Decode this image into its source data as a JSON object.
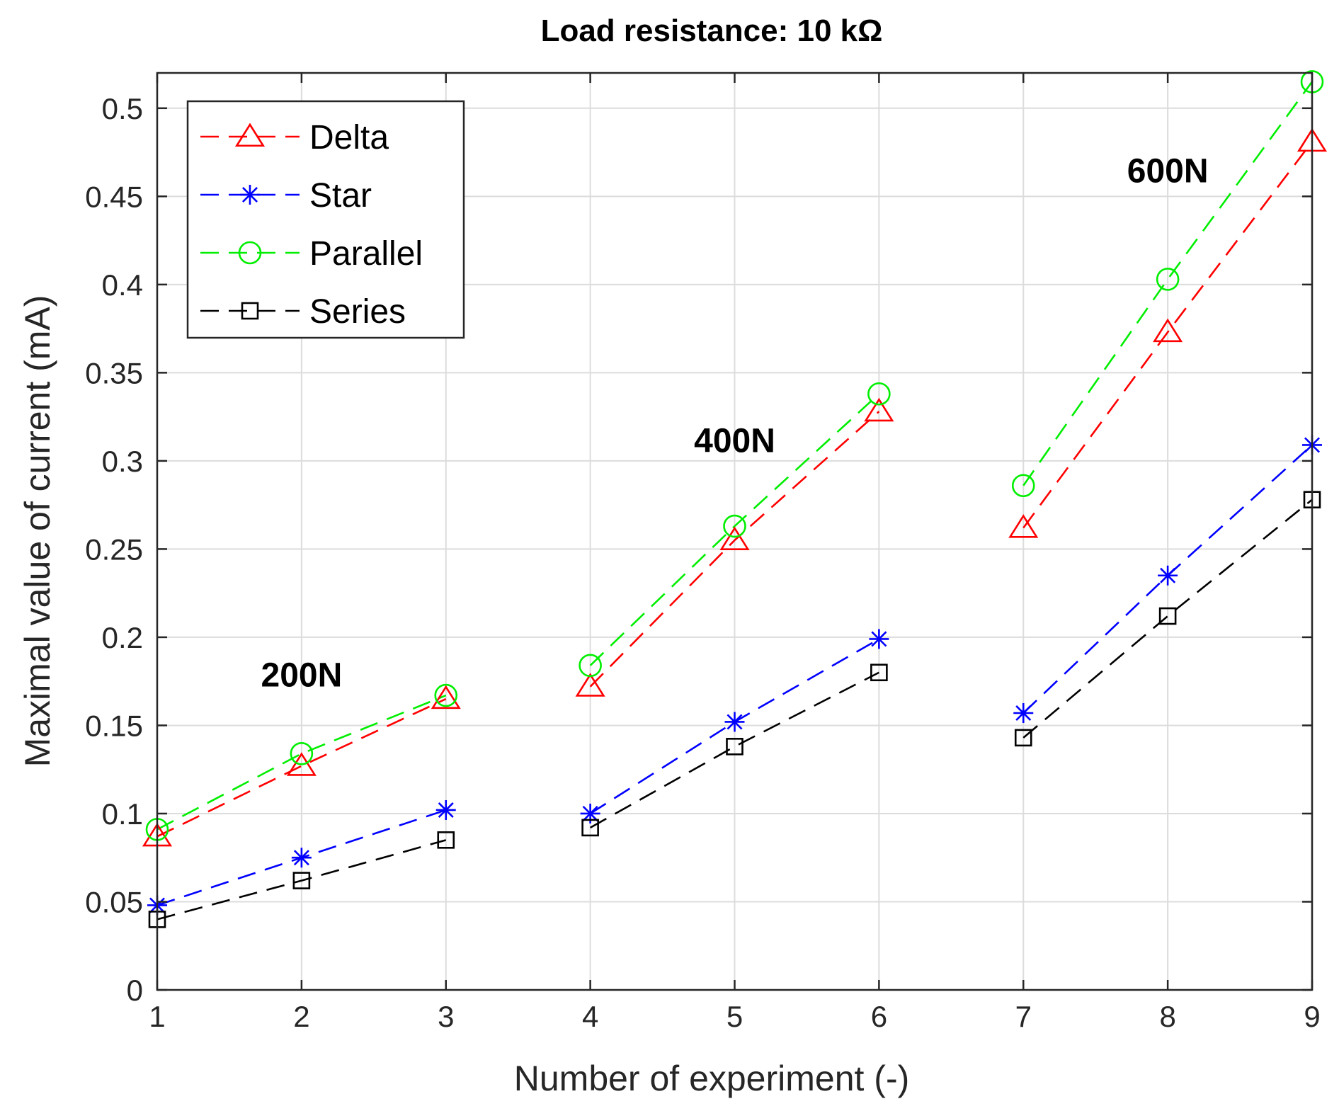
{
  "chart_data": {
    "type": "line",
    "title": "Load resistance: 10 kΩ",
    "xlabel": "Number of experiment (-)",
    "ylabel": "Maximal value of current (mA)",
    "x": [
      1,
      2,
      3,
      4,
      5,
      6,
      7,
      8,
      9
    ],
    "xlim": [
      1,
      9
    ],
    "ylim": [
      0,
      0.52
    ],
    "xticks": [
      1,
      2,
      3,
      4,
      5,
      6,
      7,
      8,
      9
    ],
    "yticks": [
      0,
      0.05,
      0.1,
      0.15,
      0.2,
      0.25,
      0.3,
      0.35,
      0.4,
      0.45,
      0.5
    ],
    "xtick_labels": [
      "1",
      "2",
      "3",
      "4",
      "5",
      "6",
      "7",
      "8",
      "9"
    ],
    "ytick_labels": [
      "0",
      "0.05",
      "0.1",
      "0.15",
      "0.2",
      "0.25",
      "0.3",
      "0.35",
      "0.4",
      "0.45",
      "0.5"
    ],
    "grid": true,
    "legend_position": "top-left",
    "groups": [
      [
        1,
        2,
        3
      ],
      [
        4,
        5,
        6
      ],
      [
        7,
        8,
        9
      ]
    ],
    "series": [
      {
        "name": "Delta",
        "color": "#ff0000",
        "marker": "triangle",
        "values": [
          0.087,
          0.127,
          0.165,
          0.172,
          0.255,
          0.328,
          0.262,
          0.373,
          0.481
        ]
      },
      {
        "name": "Star",
        "color": "#0000ff",
        "marker": "asterisk",
        "values": [
          0.048,
          0.075,
          0.102,
          0.1,
          0.152,
          0.199,
          0.157,
          0.235,
          0.309
        ]
      },
      {
        "name": "Parallel",
        "color": "#00ee00",
        "marker": "circle",
        "values": [
          0.091,
          0.134,
          0.167,
          0.184,
          0.263,
          0.338,
          0.286,
          0.403,
          0.515
        ]
      },
      {
        "name": "Series",
        "color": "#000000",
        "marker": "square",
        "values": [
          0.04,
          0.062,
          0.085,
          0.092,
          0.138,
          0.18,
          0.143,
          0.212,
          0.278
        ]
      }
    ],
    "annotations": [
      {
        "text": "200N",
        "x": 2.0,
        "y": 0.172
      },
      {
        "text": "400N",
        "x": 5.0,
        "y": 0.305
      },
      {
        "text": "600N",
        "x": 8.0,
        "y": 0.458
      }
    ]
  }
}
